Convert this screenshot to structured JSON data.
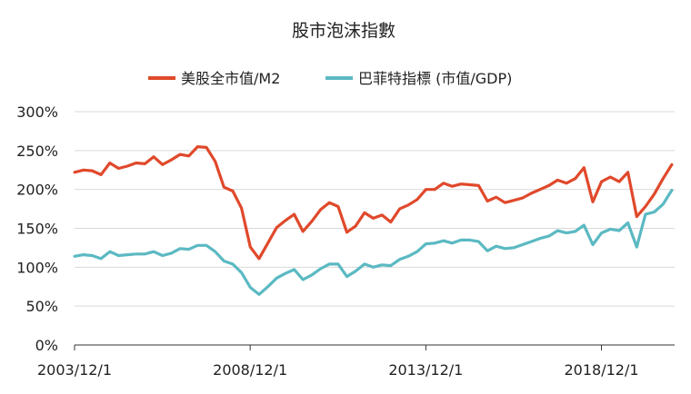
{
  "chart_data": {
    "type": "line",
    "title": "股市泡沫指數",
    "xlabel": "",
    "ylabel": "",
    "ylim": [
      0,
      300
    ],
    "y_ticks": [
      "0%",
      "50%",
      "100%",
      "150%",
      "200%",
      "250%",
      "300%"
    ],
    "x_ticks": [
      "2003/12/1",
      "2008/12/1",
      "2013/12/1",
      "2018/12/1"
    ],
    "x_range": [
      2003.917,
      2021.0
    ],
    "grid": "horizontal",
    "legend_position": "top-center",
    "series": [
      {
        "name": "美股全市值/M2",
        "color": "#E0492B",
        "x": [
          2003.92,
          2004.17,
          2004.42,
          2004.67,
          2004.92,
          2005.17,
          2005.42,
          2005.67,
          2005.92,
          2006.17,
          2006.42,
          2006.67,
          2006.92,
          2007.17,
          2007.42,
          2007.67,
          2007.92,
          2008.17,
          2008.42,
          2008.67,
          2008.92,
          2009.17,
          2009.42,
          2009.67,
          2009.92,
          2010.17,
          2010.42,
          2010.67,
          2010.92,
          2011.17,
          2011.42,
          2011.67,
          2011.92,
          2012.17,
          2012.42,
          2012.67,
          2012.92,
          2013.17,
          2013.42,
          2013.67,
          2013.92,
          2014.17,
          2014.42,
          2014.67,
          2014.92,
          2015.17,
          2015.42,
          2015.67,
          2015.92,
          2016.17,
          2016.42,
          2016.67,
          2016.92,
          2017.17,
          2017.42,
          2017.67,
          2017.92,
          2018.17,
          2018.42,
          2018.67,
          2018.92,
          2019.17,
          2019.42,
          2019.67,
          2019.92,
          2020.17,
          2020.42,
          2020.67,
          2020.92
        ],
        "values": [
          222,
          225,
          224,
          219,
          234,
          227,
          230,
          234,
          233,
          242,
          232,
          238,
          245,
          243,
          255,
          254,
          236,
          203,
          198,
          176,
          126,
          111,
          131,
          151,
          160,
          168,
          146,
          159,
          174,
          183,
          178,
          145,
          153,
          170,
          163,
          167,
          158,
          175,
          180,
          187,
          200,
          200,
          208,
          204,
          207,
          206,
          205,
          185,
          190,
          183,
          186,
          189,
          195,
          200,
          205,
          212,
          208,
          214,
          228,
          184,
          210,
          216,
          210,
          222,
          165,
          178,
          194,
          214,
          232
        ]
      },
      {
        "name": "巴菲特指標 (市值/GDP)",
        "color": "#5BB9C2",
        "x": [
          2003.92,
          2004.17,
          2004.42,
          2004.67,
          2004.92,
          2005.17,
          2005.42,
          2005.67,
          2005.92,
          2006.17,
          2006.42,
          2006.67,
          2006.92,
          2007.17,
          2007.42,
          2007.67,
          2007.92,
          2008.17,
          2008.42,
          2008.67,
          2008.92,
          2009.17,
          2009.42,
          2009.67,
          2009.92,
          2010.17,
          2010.42,
          2010.67,
          2010.92,
          2011.17,
          2011.42,
          2011.67,
          2011.92,
          2012.17,
          2012.42,
          2012.67,
          2012.92,
          2013.17,
          2013.42,
          2013.67,
          2013.92,
          2014.17,
          2014.42,
          2014.67,
          2014.92,
          2015.17,
          2015.42,
          2015.67,
          2015.92,
          2016.17,
          2016.42,
          2016.67,
          2016.92,
          2017.17,
          2017.42,
          2017.67,
          2017.92,
          2018.17,
          2018.42,
          2018.67,
          2018.92,
          2019.17,
          2019.42,
          2019.67,
          2019.92,
          2020.17,
          2020.42,
          2020.67,
          2020.92
        ],
        "values": [
          114,
          116,
          115,
          111,
          120,
          115,
          116,
          117,
          117,
          120,
          115,
          118,
          124,
          123,
          128,
          128,
          120,
          108,
          104,
          93,
          74,
          65,
          75,
          86,
          92,
          97,
          84,
          90,
          98,
          104,
          104,
          88,
          95,
          104,
          100,
          103,
          102,
          110,
          114,
          120,
          130,
          131,
          134,
          131,
          135,
          135,
          133,
          121,
          127,
          124,
          125,
          129,
          133,
          137,
          140,
          147,
          144,
          146,
          154,
          129,
          144,
          149,
          147,
          157,
          126,
          168,
          171,
          181,
          199
        ]
      }
    ]
  }
}
